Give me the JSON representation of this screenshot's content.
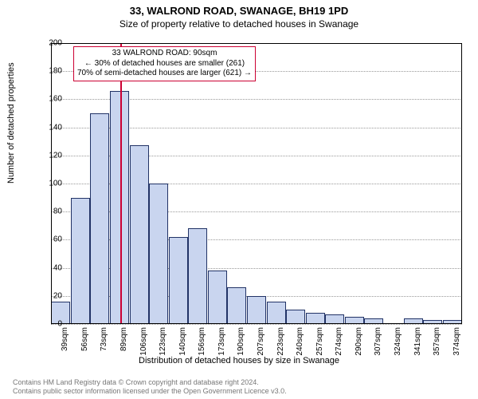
{
  "header": {
    "address_line": "33, WALROND ROAD, SWANAGE, BH19 1PD",
    "subtitle": "Size of property relative to detached houses in Swanage"
  },
  "chart": {
    "type": "histogram",
    "ylabel": "Number of detached properties",
    "xlabel": "Distribution of detached houses by size in Swanage",
    "ylim": [
      0,
      200
    ],
    "ytick_step": 20,
    "label_fontsize": 11,
    "tick_fontsize": 10,
    "background_color": "#ffffff",
    "grid_color": "#999999",
    "grid_style": "dotted",
    "axis_color": "#000000",
    "bar_fill": "#c9d5ef",
    "bar_border": "#223366",
    "marker_color": "#cc0033",
    "marker_x": 90,
    "categories": [
      "39sqm",
      "56sqm",
      "73sqm",
      "89sqm",
      "106sqm",
      "123sqm",
      "140sqm",
      "156sqm",
      "173sqm",
      "190sqm",
      "207sqm",
      "223sqm",
      "240sqm",
      "257sqm",
      "274sqm",
      "290sqm",
      "307sqm",
      "324sqm",
      "341sqm",
      "357sqm",
      "374sqm"
    ],
    "x_numeric": [
      39,
      56,
      73,
      89,
      106,
      123,
      140,
      156,
      173,
      190,
      207,
      223,
      240,
      257,
      274,
      290,
      307,
      324,
      341,
      357,
      374
    ],
    "values": [
      16,
      90,
      150,
      166,
      127,
      100,
      62,
      68,
      38,
      26,
      20,
      16,
      10,
      8,
      7,
      5,
      4,
      0,
      4,
      3,
      3
    ],
    "bar_width_ratio": 0.98
  },
  "annotation": {
    "line1": "33 WALROND ROAD: 90sqm",
    "line2": "← 30% of detached houses are smaller (261)",
    "line3": "70% of semi-detached houses are larger (621) →",
    "border_color": "#cc0033"
  },
  "footer": {
    "line1": "Contains HM Land Registry data © Crown copyright and database right 2024.",
    "line2": "Contains public sector information licensed under the Open Government Licence v3.0."
  }
}
